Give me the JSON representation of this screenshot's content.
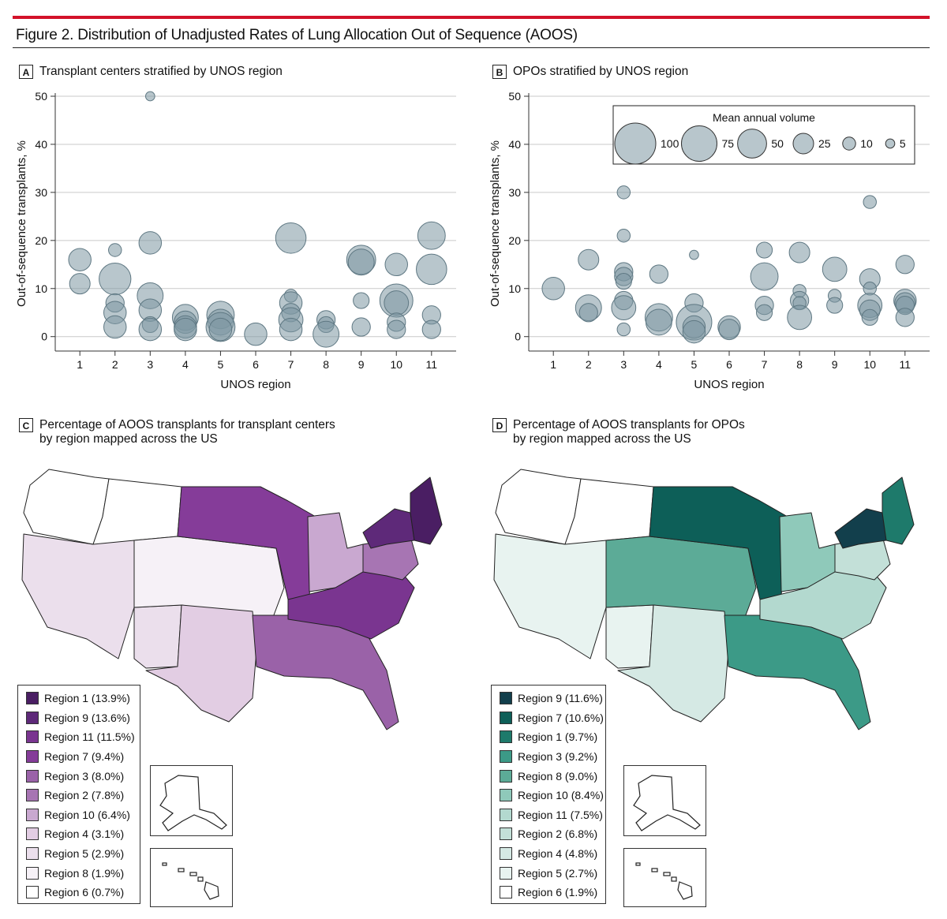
{
  "figure": {
    "title": "Figure 2. Distribution of Unadjusted Rates of Lung Allocation Out of Sequence (AOOS)",
    "colors": {
      "accent_rule": "#d3122a",
      "bubble_fill": "#7e97a2",
      "bubble_stroke": "#5f7883"
    }
  },
  "panels": {
    "A": {
      "label": "A",
      "title": "Transplant centers stratified by UNOS region"
    },
    "B": {
      "label": "B",
      "title": "OPOs stratified by UNOS region"
    },
    "C": {
      "label": "C",
      "title": "Percentage of AOOS transplants for transplant centers\nby region mapped across the US"
    },
    "D": {
      "label": "D",
      "title": "Percentage of AOOS transplants for OPOs\nby region mapped across the US"
    }
  },
  "chart_data": [
    {
      "type": "scatter",
      "id": "A",
      "xlabel": "UNOS region",
      "ylabel": "Out-of-sequence transplants, %",
      "xlim": [
        0.3,
        11.7
      ],
      "ylim": [
        -3,
        50
      ],
      "xticks": [
        1,
        2,
        3,
        4,
        5,
        6,
        7,
        8,
        9,
        10,
        11
      ],
      "yticks": [
        0,
        10,
        20,
        30,
        40,
        50
      ],
      "points": [
        {
          "x": 1,
          "y": 16,
          "v": 30
        },
        {
          "x": 1,
          "y": 11,
          "v": 25
        },
        {
          "x": 2,
          "y": 18,
          "v": 10
        },
        {
          "x": 2,
          "y": 12,
          "v": 60
        },
        {
          "x": 2,
          "y": 7,
          "v": 20
        },
        {
          "x": 2,
          "y": 5,
          "v": 30
        },
        {
          "x": 2,
          "y": 2,
          "v": 30
        },
        {
          "x": 3,
          "y": 50,
          "v": 5
        },
        {
          "x": 3,
          "y": 19.5,
          "v": 30
        },
        {
          "x": 3,
          "y": 8.5,
          "v": 40
        },
        {
          "x": 3,
          "y": 5.5,
          "v": 30
        },
        {
          "x": 3,
          "y": 2.5,
          "v": 15
        },
        {
          "x": 3,
          "y": 1.5,
          "v": 30
        },
        {
          "x": 4,
          "y": 4,
          "v": 40
        },
        {
          "x": 4,
          "y": 3,
          "v": 30
        },
        {
          "x": 4,
          "y": 2,
          "v": 30
        },
        {
          "x": 4,
          "y": 1.5,
          "v": 30
        },
        {
          "x": 5,
          "y": 4.5,
          "v": 45
        },
        {
          "x": 5,
          "y": 3,
          "v": 40
        },
        {
          "x": 5,
          "y": 2,
          "v": 50
        },
        {
          "x": 5,
          "y": 1.5,
          "v": 30
        },
        {
          "x": 6,
          "y": 0.5,
          "v": 30
        },
        {
          "x": 7,
          "y": 20.5,
          "v": 55
        },
        {
          "x": 7,
          "y": 8.5,
          "v": 10
        },
        {
          "x": 7,
          "y": 7,
          "v": 30
        },
        {
          "x": 7,
          "y": 5,
          "v": 20
        },
        {
          "x": 7,
          "y": 3.5,
          "v": 35
        },
        {
          "x": 7,
          "y": 1.5,
          "v": 30
        },
        {
          "x": 8,
          "y": 3.5,
          "v": 20
        },
        {
          "x": 8,
          "y": 2.5,
          "v": 15
        },
        {
          "x": 8,
          "y": 0.5,
          "v": 40
        },
        {
          "x": 9,
          "y": 16,
          "v": 50
        },
        {
          "x": 9,
          "y": 15.5,
          "v": 40
        },
        {
          "x": 9,
          "y": 7.5,
          "v": 15
        },
        {
          "x": 9,
          "y": 2,
          "v": 20
        },
        {
          "x": 10,
          "y": 15,
          "v": 30
        },
        {
          "x": 10,
          "y": 7.5,
          "v": 65
        },
        {
          "x": 10,
          "y": 7,
          "v": 35
        },
        {
          "x": 10,
          "y": 3,
          "v": 20
        },
        {
          "x": 10,
          "y": 1.5,
          "v": 20
        },
        {
          "x": 11,
          "y": 21,
          "v": 45
        },
        {
          "x": 11,
          "y": 14,
          "v": 55
        },
        {
          "x": 11,
          "y": 4.5,
          "v": 20
        },
        {
          "x": 11,
          "y": 1.5,
          "v": 20
        }
      ]
    },
    {
      "type": "scatter",
      "id": "B",
      "xlabel": "UNOS region",
      "ylabel": "Out-of-sequence transplants, %",
      "xlim": [
        0.3,
        11.7
      ],
      "ylim": [
        -3,
        50
      ],
      "xticks": [
        1,
        2,
        3,
        4,
        5,
        6,
        7,
        8,
        9,
        10,
        11
      ],
      "yticks": [
        0,
        10,
        20,
        30,
        40,
        50
      ],
      "points": [
        {
          "x": 1,
          "y": 10,
          "v": 30
        },
        {
          "x": 2,
          "y": 16,
          "v": 25
        },
        {
          "x": 2,
          "y": 6,
          "v": 40
        },
        {
          "x": 2,
          "y": 5,
          "v": 20
        },
        {
          "x": 3,
          "y": 30,
          "v": 10
        },
        {
          "x": 3,
          "y": 21,
          "v": 10
        },
        {
          "x": 3,
          "y": 13.5,
          "v": 20
        },
        {
          "x": 3,
          "y": 12.5,
          "v": 20
        },
        {
          "x": 3,
          "y": 11.5,
          "v": 15
        },
        {
          "x": 3,
          "y": 7.5,
          "v": 20
        },
        {
          "x": 3,
          "y": 6,
          "v": 35
        },
        {
          "x": 3,
          "y": 1.5,
          "v": 10
        },
        {
          "x": 4,
          "y": 13,
          "v": 20
        },
        {
          "x": 4,
          "y": 4,
          "v": 45
        },
        {
          "x": 4,
          "y": 3,
          "v": 40
        },
        {
          "x": 5,
          "y": 17,
          "v": 5
        },
        {
          "x": 5,
          "y": 7,
          "v": 20
        },
        {
          "x": 5,
          "y": 3,
          "v": 75
        },
        {
          "x": 5,
          "y": 2,
          "v": 30
        },
        {
          "x": 5,
          "y": 1,
          "v": 30
        },
        {
          "x": 6,
          "y": 2,
          "v": 30
        },
        {
          "x": 6,
          "y": 1.5,
          "v": 25
        },
        {
          "x": 7,
          "y": 18,
          "v": 15
        },
        {
          "x": 7,
          "y": 12.5,
          "v": 45
        },
        {
          "x": 7,
          "y": 6.5,
          "v": 20
        },
        {
          "x": 7,
          "y": 5,
          "v": 15
        },
        {
          "x": 8,
          "y": 17.5,
          "v": 25
        },
        {
          "x": 8,
          "y": 9.5,
          "v": 10
        },
        {
          "x": 8,
          "y": 7.5,
          "v": 20
        },
        {
          "x": 8,
          "y": 7,
          "v": 10
        },
        {
          "x": 8,
          "y": 4,
          "v": 35
        },
        {
          "x": 9,
          "y": 14,
          "v": 35
        },
        {
          "x": 9,
          "y": 8.5,
          "v": 10
        },
        {
          "x": 9,
          "y": 6.5,
          "v": 15
        },
        {
          "x": 10,
          "y": 28,
          "v": 10
        },
        {
          "x": 10,
          "y": 12,
          "v": 25
        },
        {
          "x": 10,
          "y": 10,
          "v": 10
        },
        {
          "x": 10,
          "y": 6.5,
          "v": 35
        },
        {
          "x": 10,
          "y": 5.5,
          "v": 25
        },
        {
          "x": 10,
          "y": 4,
          "v": 15
        },
        {
          "x": 11,
          "y": 15,
          "v": 20
        },
        {
          "x": 11,
          "y": 7.5,
          "v": 30
        },
        {
          "x": 11,
          "y": 7,
          "v": 25
        },
        {
          "x": 11,
          "y": 6.5,
          "v": 20
        },
        {
          "x": 11,
          "y": 4,
          "v": 20
        }
      ],
      "size_legend": {
        "title": "Mean annual volume",
        "values": [
          100,
          75,
          50,
          25,
          10,
          5
        ],
        "labels": [
          "100",
          "75",
          "50",
          "25",
          "10",
          "5"
        ]
      }
    }
  ],
  "maps": {
    "C": {
      "legend": [
        {
          "label": "Region 1 (13.9%)",
          "color": "#4a1e63"
        },
        {
          "label": "Region 9 (13.6%)",
          "color": "#5e2979"
        },
        {
          "label": "Region 11 (11.5%)",
          "color": "#7a3590"
        },
        {
          "label": "Region 7 (9.4%)",
          "color": "#853c99"
        },
        {
          "label": "Region 3 (8.0%)",
          "color": "#9a62a8"
        },
        {
          "label": "Region 2 (7.8%)",
          "color": "#a775b3"
        },
        {
          "label": "Region 10 (6.4%)",
          "color": "#c9a8d0"
        },
        {
          "label": "Region 4 (3.1%)",
          "color": "#e2cde3"
        },
        {
          "label": "Region 5 (2.9%)",
          "color": "#ebdfec"
        },
        {
          "label": "Region 8 (1.9%)",
          "color": "#f6f1f7"
        },
        {
          "label": "Region 6 (0.7%)",
          "color": "#ffffff"
        }
      ]
    },
    "D": {
      "legend": [
        {
          "label": "Region 9 (11.6%)",
          "color": "#123f4c"
        },
        {
          "label": "Region 7 (10.6%)",
          "color": "#0d5f58"
        },
        {
          "label": "Region 1 (9.7%)",
          "color": "#1e7a6b"
        },
        {
          "label": "Region 3 (9.2%)",
          "color": "#3c9a87"
        },
        {
          "label": "Region 8 (9.0%)",
          "color": "#5cab97"
        },
        {
          "label": "Region 10 (8.4%)",
          "color": "#8fc9ba"
        },
        {
          "label": "Region 11 (7.5%)",
          "color": "#b3d9cf"
        },
        {
          "label": "Region 2 (6.8%)",
          "color": "#c3e0d8"
        },
        {
          "label": "Region 4 (4.8%)",
          "color": "#d5e9e4"
        },
        {
          "label": "Region 5 (2.7%)",
          "color": "#e8f3f0"
        },
        {
          "label": "Region 6 (1.9%)",
          "color": "#ffffff"
        }
      ]
    }
  }
}
